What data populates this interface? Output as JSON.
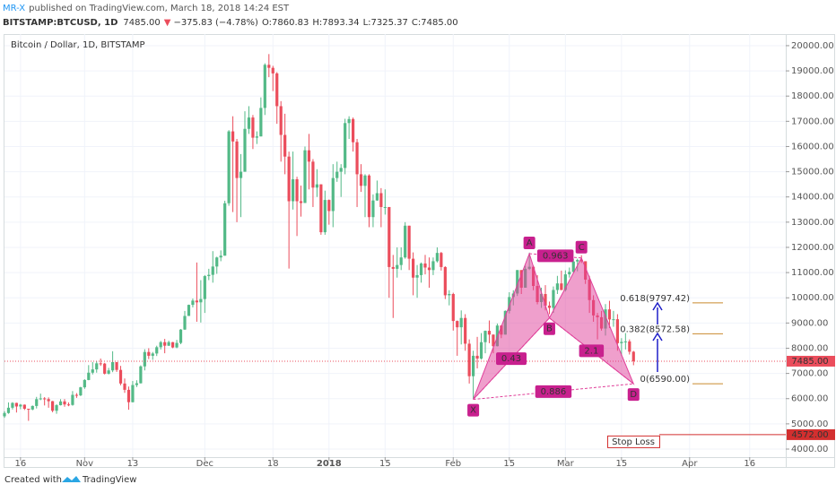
{
  "header": {
    "author": "MR-X",
    "published": "published on TradingView.com, March 18, 2018 14:24 EST",
    "symbol": "BITSTAMP:BTCUSD, 1D",
    "last": "7485.00",
    "change_arrow": "▼",
    "change": "−375.83 (−4.78%)",
    "ohlc": [
      "O:7860.83",
      "H:7893.34",
      "L:7325.37",
      "C:7485.00"
    ]
  },
  "footer": {
    "created": "Created with",
    "brand": "TradingView"
  },
  "chart_data": {
    "type": "candlestick",
    "title": "Bitcoin / Dollar, 1D, BITSTAMP",
    "up_color": "#53b987",
    "down_color": "#eb4d5c",
    "grid": true,
    "x": [
      "2017-10-12",
      "2017-10-13",
      "2017-10-14",
      "2017-10-15",
      "2017-10-16",
      "2017-10-17",
      "2017-10-18",
      "2017-10-19",
      "2017-10-20",
      "2017-10-21",
      "2017-10-22",
      "2017-10-23",
      "2017-10-24",
      "2017-10-25",
      "2017-10-26",
      "2017-10-27",
      "2017-10-28",
      "2017-10-29",
      "2017-10-30",
      "2017-10-31",
      "2017-11-01",
      "2017-11-02",
      "2017-11-03",
      "2017-11-04",
      "2017-11-05",
      "2017-11-06",
      "2017-11-07",
      "2017-11-08",
      "2017-11-09",
      "2017-11-10",
      "2017-11-11",
      "2017-11-12",
      "2017-11-13",
      "2017-11-14",
      "2017-11-15",
      "2017-11-16",
      "2017-11-17",
      "2017-11-18",
      "2017-11-19",
      "2017-11-20",
      "2017-11-21",
      "2017-11-22",
      "2017-11-23",
      "2017-11-24",
      "2017-11-25",
      "2017-11-26",
      "2017-11-27",
      "2017-11-28",
      "2017-11-29",
      "2017-11-30",
      "2017-12-01",
      "2017-12-02",
      "2017-12-03",
      "2017-12-04",
      "2017-12-05",
      "2017-12-06",
      "2017-12-07",
      "2017-12-08",
      "2017-12-09",
      "2017-12-10",
      "2017-12-11",
      "2017-12-12",
      "2017-12-13",
      "2017-12-14",
      "2017-12-15",
      "2017-12-16",
      "2017-12-17",
      "2017-12-18",
      "2017-12-19",
      "2017-12-20",
      "2017-12-21",
      "2017-12-22",
      "2017-12-23",
      "2017-12-24",
      "2017-12-25",
      "2017-12-26",
      "2017-12-27",
      "2017-12-28",
      "2017-12-29",
      "2017-12-30",
      "2017-12-31",
      "2018-01-01",
      "2018-01-02",
      "2018-01-03",
      "2018-01-04",
      "2018-01-05",
      "2018-01-06",
      "2018-01-07",
      "2018-01-08",
      "2018-01-09",
      "2018-01-10",
      "2018-01-11",
      "2018-01-12",
      "2018-01-13",
      "2018-01-14",
      "2018-01-15",
      "2018-01-16",
      "2018-01-17",
      "2018-01-18",
      "2018-01-19",
      "2018-01-20",
      "2018-01-21",
      "2018-01-22",
      "2018-01-23",
      "2018-01-24",
      "2018-01-25",
      "2018-01-26",
      "2018-01-27",
      "2018-01-28",
      "2018-01-29",
      "2018-01-30",
      "2018-01-31",
      "2018-02-01",
      "2018-02-02",
      "2018-02-03",
      "2018-02-04",
      "2018-02-05",
      "2018-02-06",
      "2018-02-07",
      "2018-02-08",
      "2018-02-09",
      "2018-02-10",
      "2018-02-11",
      "2018-02-12",
      "2018-02-13",
      "2018-02-14",
      "2018-02-15",
      "2018-02-16",
      "2018-02-17",
      "2018-02-18",
      "2018-02-19",
      "2018-02-20",
      "2018-02-21",
      "2018-02-22",
      "2018-02-23",
      "2018-02-24",
      "2018-02-25",
      "2018-02-26",
      "2018-02-27",
      "2018-02-28",
      "2018-03-01",
      "2018-03-02",
      "2018-03-03",
      "2018-03-04",
      "2018-03-05",
      "2018-03-06",
      "2018-03-07",
      "2018-03-08",
      "2018-03-09",
      "2018-03-10",
      "2018-03-11",
      "2018-03-12",
      "2018-03-13",
      "2018-03-14",
      "2018-03-15",
      "2018-03-16",
      "2018-03-17",
      "2018-03-18"
    ],
    "open": [
      5300,
      5430,
      5640,
      5830,
      5690,
      5760,
      5600,
      5570,
      5710,
      5980,
      6010,
      5980,
      5900,
      5520,
      5740,
      5890,
      5770,
      5750,
      6150,
      6130,
      6450,
      6740,
      7030,
      7160,
      7400,
      7390,
      6990,
      7120,
      7450,
      7140,
      6600,
      6350,
      5860,
      6540,
      6610,
      7280,
      7850,
      7700,
      7790,
      8040,
      8240,
      8100,
      8240,
      8030,
      8210,
      8740,
      9280,
      9720,
      9890,
      9820,
      9950,
      10860,
      10910,
      11240,
      11600,
      11670,
      13750,
      16600,
      16200,
      14750,
      15000,
      16700,
      17150,
      16350,
      16400,
      17530,
      19240,
      19120,
      18900,
      17600,
      16460,
      15600,
      13830,
      14700,
      13830,
      13760,
      15850,
      15400,
      14370,
      14500,
      12600,
      13880,
      13440,
      14750,
      15000,
      15150,
      16930,
      17090,
      16170,
      14900,
      14440,
      14850,
      13200,
      13860,
      14150,
      13600,
      13600,
      11220,
      11150,
      11300,
      11600,
      12860,
      11550,
      10800,
      10900,
      11360,
      11200,
      11100,
      11450,
      11780,
      11220,
      10100,
      10150,
      9080,
      8830,
      9200,
      8180,
      6890,
      7700,
      7590,
      8240,
      8690,
      8540,
      8080,
      8900,
      8540,
      9480,
      10030,
      10170,
      11100,
      10400,
      11150,
      11230,
      10470,
      9830,
      10150,
      9690,
      9600,
      10310,
      10570,
      10310,
      10930,
      11030,
      11440,
      11500,
      11450,
      10720,
      9910,
      9300,
      9230,
      8780,
      9540,
      9140,
      9150,
      8200,
      8250,
      8270,
      7860.83
    ],
    "high": [
      5500,
      5850,
      5860,
      5840,
      5790,
      5770,
      5600,
      5730,
      6070,
      6200,
      6060,
      6050,
      5910,
      5780,
      5980,
      5980,
      5850,
      6300,
      6220,
      6470,
      6770,
      7330,
      7450,
      7480,
      7590,
      7420,
      7220,
      7880,
      7450,
      7300,
      6800,
      6480,
      6700,
      6730,
      7320,
      7960,
      8000,
      7850,
      8100,
      8290,
      8370,
      8300,
      8250,
      8330,
      8760,
      9480,
      9730,
      9970,
      11400,
      10700,
      10900,
      11150,
      11850,
      11630,
      11880,
      13850,
      16650,
      17200,
      16300,
      15700,
      17400,
      17600,
      17250,
      16600,
      17950,
      19300,
      19666,
      19200,
      18950,
      17800,
      17300,
      15800,
      15800,
      14800,
      14450,
      16000,
      16500,
      15500,
      15100,
      14500,
      14250,
      13900,
      15300,
      15400,
      15300,
      17100,
      17200,
      17150,
      16300,
      15300,
      14900,
      14900,
      14100,
      14650,
      14350,
      14300,
      13600,
      11700,
      12000,
      12000,
      13000,
      12860,
      11800,
      11300,
      11400,
      11700,
      11600,
      11600,
      12000,
      11820,
      11250,
      10300,
      10200,
      9100,
      9500,
      9350,
      8350,
      7900,
      8450,
      8600,
      8700,
      9100,
      8550,
      8980,
      8910,
      9500,
      10220,
      10300,
      11100,
      11100,
      11270,
      11790,
      11280,
      10900,
      10400,
      10500,
      9850,
      10450,
      10870,
      11080,
      11090,
      11200,
      11550,
      11550,
      11690,
      11450,
      10870,
      10100,
      9400,
      9480,
      9750,
      9880,
      9480,
      9350,
      8400,
      8600,
      8350,
      7893.34
    ],
    "low": [
      5240,
      5400,
      5570,
      5450,
      5580,
      5550,
      5120,
      5540,
      5610,
      5940,
      5730,
      5640,
      5460,
      5400,
      5730,
      5680,
      5700,
      5720,
      6030,
      6100,
      6390,
      6730,
      6960,
      7030,
      7300,
      6960,
      6960,
      7050,
      7060,
      6530,
      6230,
      5560,
      5850,
      6460,
      6600,
      7120,
      7570,
      7540,
      7690,
      7950,
      7800,
      8090,
      8000,
      8000,
      8160,
      8730,
      9280,
      9620,
      9050,
      9020,
      9400,
      10700,
      10600,
      10950,
      11450,
      11670,
      13650,
      13400,
      13000,
      13200,
      15000,
      16500,
      15900,
      16100,
      16400,
      17250,
      18750,
      18200,
      16900,
      15400,
      14900,
      11160,
      13500,
      12450,
      13220,
      13760,
      14300,
      13600,
      14000,
      12500,
      12500,
      12900,
      12800,
      14600,
      14000,
      14900,
      16300,
      15800,
      13600,
      14200,
      13200,
      12800,
      12800,
      13850,
      12800,
      13300,
      10000,
      9200,
      10800,
      11100,
      11550,
      11100,
      10100,
      10000,
      10600,
      10930,
      10400,
      10900,
      11400,
      11080,
      9950,
      9700,
      8700,
      7700,
      8150,
      7900,
      6600,
      6000,
      7200,
      7550,
      7800,
      8200,
      7800,
      8070,
      8400,
      8540,
      9380,
      9700,
      10070,
      10150,
      10400,
      11100,
      10300,
      9740,
      9600,
      9500,
      9350,
      9400,
      10150,
      10300,
      10250,
      10800,
      11000,
      11050,
      11380,
      10550,
      9400,
      9050,
      8350,
      8700,
      8500,
      8800,
      8850,
      7900,
      7700,
      7950,
      7750,
      7325.37
    ],
    "close": [
      5430,
      5640,
      5830,
      5690,
      5760,
      5600,
      5570,
      5710,
      5980,
      6010,
      5980,
      5900,
      5520,
      5740,
      5890,
      5770,
      5750,
      6150,
      6130,
      6450,
      6740,
      7030,
      7160,
      7400,
      7390,
      6990,
      7120,
      7450,
      7140,
      6600,
      6350,
      5860,
      6540,
      6610,
      7280,
      7850,
      7700,
      7790,
      8040,
      8240,
      8100,
      8240,
      8030,
      8210,
      8740,
      9280,
      9720,
      9890,
      9820,
      9950,
      10860,
      10910,
      11240,
      11600,
      11670,
      13750,
      16600,
      16200,
      14750,
      15000,
      16700,
      17150,
      16350,
      16400,
      17530,
      19240,
      19120,
      18900,
      17600,
      16460,
      15600,
      13830,
      14700,
      13830,
      13760,
      15850,
      15400,
      14370,
      14500,
      12600,
      13880,
      13440,
      14750,
      15000,
      15150,
      16930,
      17090,
      16170,
      14900,
      14440,
      14850,
      13200,
      13860,
      14150,
      13600,
      13600,
      11220,
      11150,
      11300,
      11600,
      12860,
      11550,
      10800,
      10900,
      11360,
      11200,
      11100,
      11450,
      11780,
      11220,
      10100,
      10150,
      9080,
      8830,
      9200,
      8180,
      6890,
      7700,
      7590,
      8240,
      8690,
      8540,
      8080,
      8900,
      8540,
      9480,
      10030,
      10170,
      11100,
      10400,
      11150,
      11230,
      10470,
      9830,
      10150,
      9690,
      9600,
      10310,
      10570,
      10310,
      10930,
      11030,
      11440,
      11500,
      11450,
      10720,
      9910,
      9300,
      9230,
      8780,
      9540,
      9140,
      9150,
      8200,
      8250,
      8270,
      7860.83,
      7485
    ],
    "xlim": [
      "2017-10-12",
      "2018-04-25"
    ],
    "xticks": [
      {
        "value": "2017-10-16",
        "label": "16"
      },
      {
        "value": "2017-11-01",
        "label": "Nov"
      },
      {
        "value": "2017-11-13",
        "label": "13"
      },
      {
        "value": "2017-12-01",
        "label": "Dec"
      },
      {
        "value": "2017-12-18",
        "label": "18"
      },
      {
        "value": "2018-01-01",
        "label": "2018"
      },
      {
        "value": "2018-01-15",
        "label": "15"
      },
      {
        "value": "2018-02-01",
        "label": "Feb"
      },
      {
        "value": "2018-02-15",
        "label": "15"
      },
      {
        "value": "2018-03-01",
        "label": "Mar"
      },
      {
        "value": "2018-03-15",
        "label": "15"
      },
      {
        "value": "2018-04-01",
        "label": "Apr"
      },
      {
        "value": "2018-04-16",
        "label": "16"
      }
    ],
    "ylim": [
      3680,
      20460
    ],
    "yticks": [
      {
        "value": 4000,
        "label": "4000.00"
      },
      {
        "value": 5000,
        "label": "5000.00"
      },
      {
        "value": 6000,
        "label": "6000.00"
      },
      {
        "value": 7000,
        "label": "7000.00"
      },
      {
        "value": 8000,
        "label": "8000.00"
      },
      {
        "value": 9000,
        "label": "9000.00"
      },
      {
        "value": 10000,
        "label": "10000.00"
      },
      {
        "value": 11000,
        "label": "11000.00"
      },
      {
        "value": 12000,
        "label": "12000.00"
      },
      {
        "value": 13000,
        "label": "13000.00"
      },
      {
        "value": 14000,
        "label": "14000.00"
      },
      {
        "value": 15000,
        "label": "15000.00"
      },
      {
        "value": 16000,
        "label": "16000.00"
      },
      {
        "value": 17000,
        "label": "17000.00"
      },
      {
        "value": 18000,
        "label": "18000.00"
      },
      {
        "value": 19000,
        "label": "19000.00"
      },
      {
        "value": 20000,
        "label": "20000.00"
      }
    ],
    "last_price": {
      "value": 7485,
      "label": "7485.00",
      "color": "#eb4d5c"
    },
    "pattern": {
      "color": "#e0409a",
      "points": [
        {
          "label": "X",
          "x": "2018-02-06",
          "y": 5970
        },
        {
          "label": "A",
          "x": "2018-02-20",
          "y": 11750
        },
        {
          "label": "B",
          "x": "2018-02-25",
          "y": 9200
        },
        {
          "label": "C",
          "x": "2018-03-05",
          "y": 11580
        },
        {
          "label": "D",
          "x": "2018-03-18",
          "y": 6590
        }
      ],
      "ratios": [
        {
          "from": "X",
          "to": "B",
          "value": 0.43
        },
        {
          "from": "A",
          "to": "C",
          "value": 0.963
        },
        {
          "from": "B",
          "to": "D",
          "value": 2.1
        },
        {
          "from": "X",
          "to": "D",
          "value": 0.886
        }
      ]
    },
    "levels": {
      "color": "#c98a2e",
      "items": [
        {
          "value": 9797.42,
          "label": "0.618(9797.42)"
        },
        {
          "value": 8572.58,
          "label": "0.382(8572.58)"
        },
        {
          "value": 6590,
          "label": "0(6590.00)"
        }
      ]
    },
    "stop_loss": {
      "label": "Stop Loss",
      "value": 4572,
      "value_label": "4572.00",
      "color": "#d32f2f"
    }
  }
}
